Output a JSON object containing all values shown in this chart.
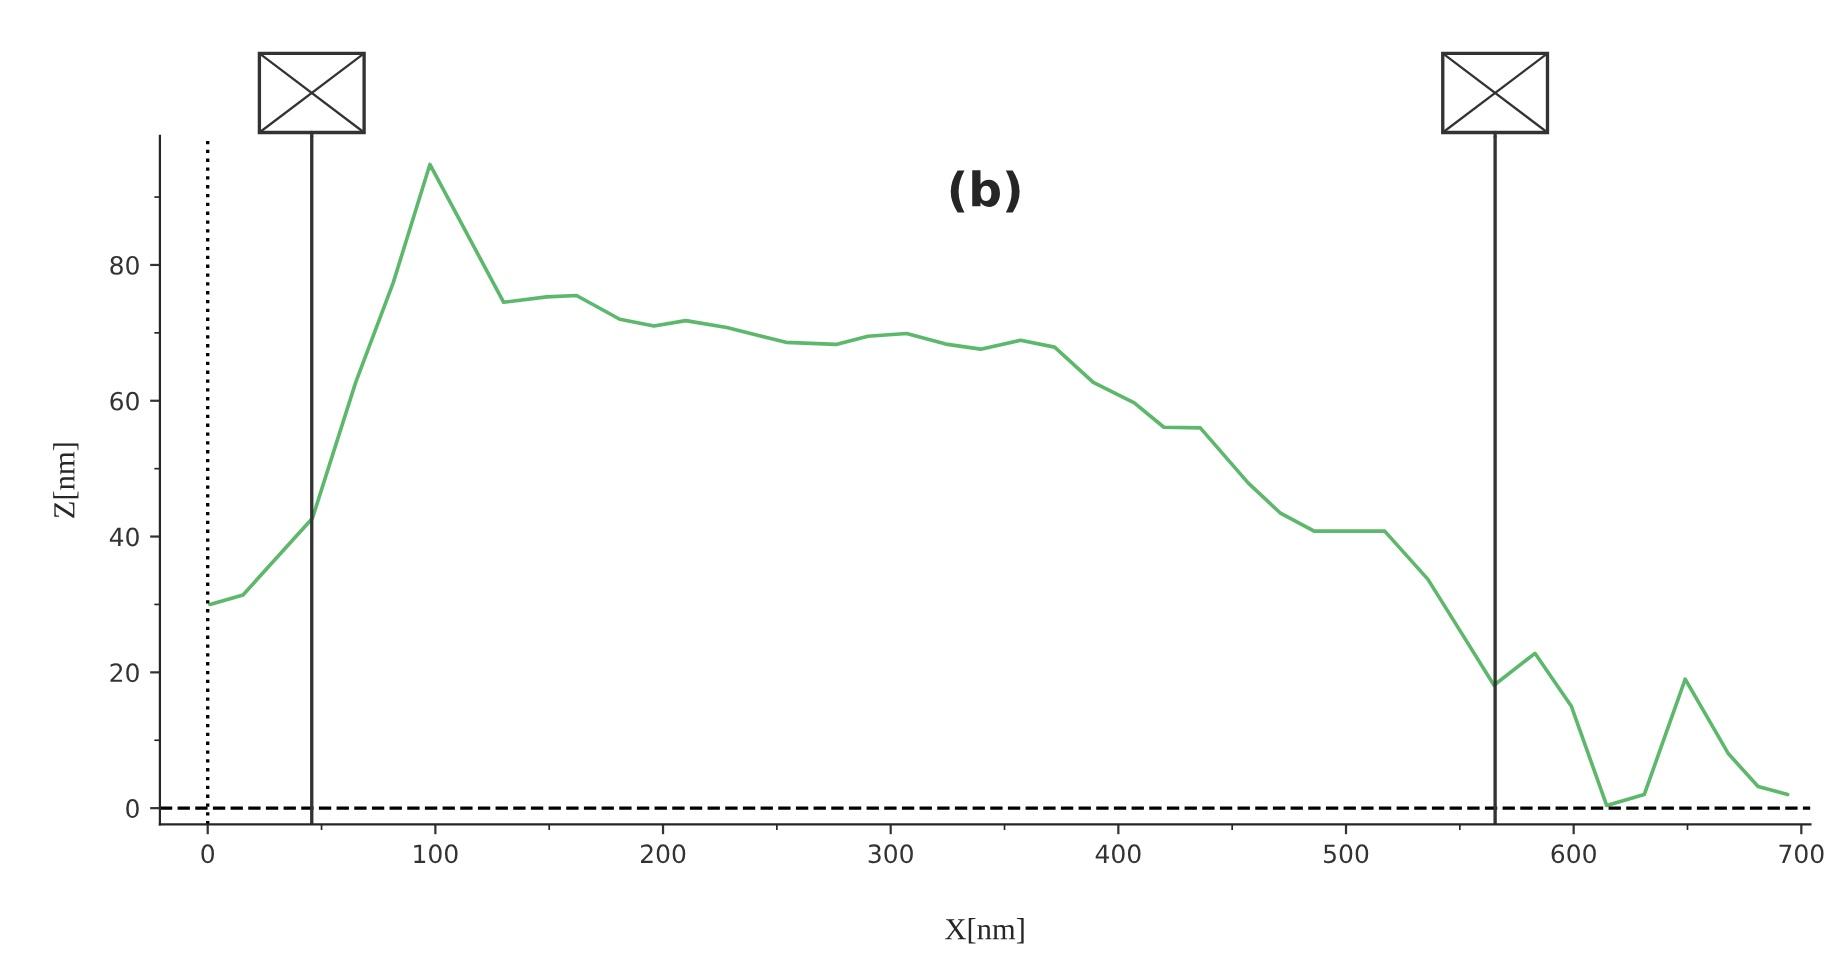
{
  "chart_data": {
    "type": "line",
    "title": "(b)",
    "xlabel": "X[nm]",
    "ylabel": "Z[nm]",
    "series": [
      {
        "color": "#5cb86a",
        "x": [
          1,
          15.5,
          46,
          65,
          81.5,
          97.6,
          130,
          149,
          162,
          181,
          196,
          210,
          228,
          254,
          276,
          290,
          307,
          325,
          339.5,
          357,
          372,
          389,
          407,
          420,
          436,
          457,
          471,
          486,
          517,
          536,
          553.5,
          565,
          583,
          599,
          614.5,
          631,
          649,
          668,
          681,
          694
        ],
        "values": [
          30,
          31.4,
          42.7,
          62.7,
          77.4,
          94.8,
          74.5,
          75.3,
          75.5,
          72,
          71,
          71.8,
          70.8,
          68.6,
          68.3,
          69.5,
          69.9,
          68.3,
          67.6,
          68.9,
          67.9,
          62.7,
          59.7,
          56.1,
          56,
          47.9,
          43.5,
          40.8,
          40.8,
          33.7,
          24.3,
          18.1,
          22.8,
          15,
          0.4,
          2,
          19,
          8,
          3.2,
          2
        ]
      }
    ],
    "xlim": [
      -21,
      704
    ],
    "ylim": [
      -2.4,
      99
    ],
    "xticks": [
      0,
      100,
      200,
      300,
      400,
      500,
      600,
      700
    ],
    "yticks": [
      0,
      20,
      40,
      60,
      80
    ],
    "ref_lines": [
      {
        "axis": "x",
        "value": 0,
        "line_style": "dotted",
        "color": "#000000"
      },
      {
        "axis": "y",
        "value": 0,
        "line_style": "dashed",
        "color": "#000000"
      },
      {
        "axis": "x",
        "value": 45.7,
        "line_style": "solid",
        "color": "#333333"
      },
      {
        "axis": "x",
        "value": 565.5,
        "line_style": "solid",
        "color": "#333333"
      }
    ],
    "grid": false,
    "legend": false,
    "marker": "none",
    "line_style": "solid"
  }
}
